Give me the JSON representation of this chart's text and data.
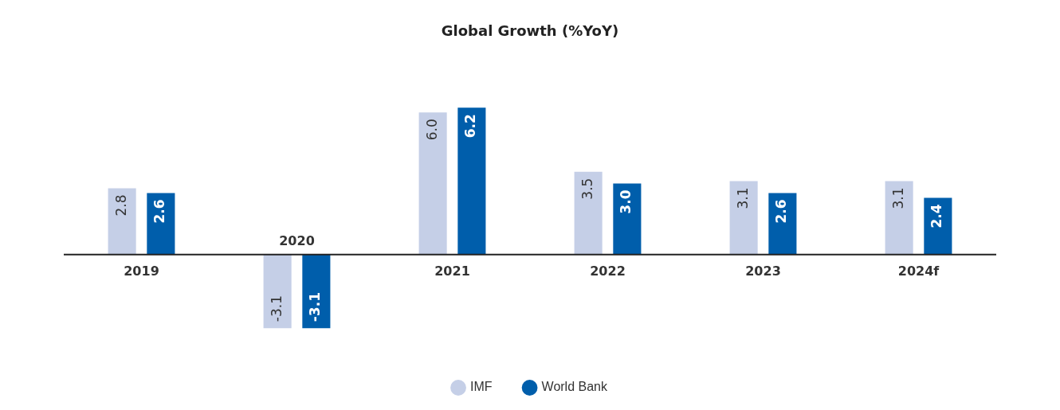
{
  "chart_data": {
    "type": "bar",
    "title": "Global Growth (%YoY)",
    "categories": [
      "2019",
      "2020",
      "2021",
      "2022",
      "2023",
      "2024f"
    ],
    "series": [
      {
        "name": "IMF",
        "color": "#c5cfe7",
        "values": [
          2.8,
          -3.1,
          6.0,
          3.5,
          3.1,
          3.1
        ],
        "value_labels": [
          "2.8",
          "-3.1",
          "6.0",
          "3.5",
          "3.1",
          "3.1"
        ]
      },
      {
        "name": "World Bank",
        "color": "#005eab",
        "values": [
          2.6,
          -3.1,
          6.2,
          3.0,
          2.6,
          2.4
        ],
        "value_labels": [
          "2.6",
          "-3.1",
          "6.2",
          "3.0",
          "2.6",
          "2.4"
        ]
      }
    ],
    "data_labels": true,
    "legend": "bottom",
    "grid": false
  }
}
